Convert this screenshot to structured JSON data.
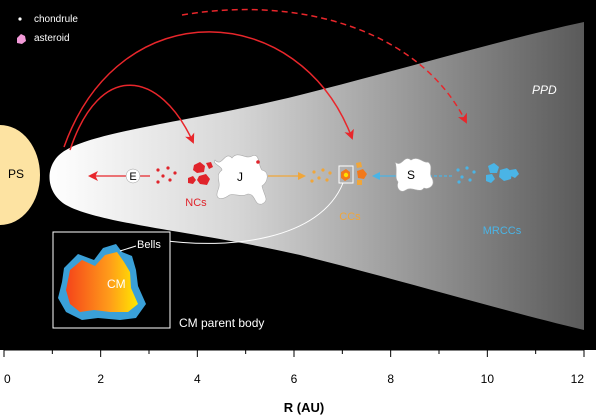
{
  "legend": {
    "chondrule": "chondrule",
    "asteroid": "asteroid"
  },
  "disk_label": "PPD",
  "star_label": "PS",
  "planets": {
    "E": "E",
    "J": "J",
    "S": "S"
  },
  "groups": {
    "nc": "NCs",
    "cc": "CCs",
    "mrcc": "MRCCs"
  },
  "inset": {
    "rim_label": "Bells",
    "core_label": "CM",
    "caption": "CM parent body"
  },
  "axis": {
    "xlabel": "R (AU)",
    "ticks": [
      "0",
      "2",
      "4",
      "6",
      "8",
      "10",
      "12"
    ]
  },
  "colors": {
    "background": "#000000",
    "star": "#fde3a2",
    "arrow_red": "#e8262b",
    "nc_red": "#e0242b",
    "cc_orange": "#f0a63a",
    "mrcc_blue": "#4ab4e6",
    "rim_blue": "#3aa0d8",
    "core_orange": "#f26a1b",
    "core_yellow": "#ffe000"
  }
}
